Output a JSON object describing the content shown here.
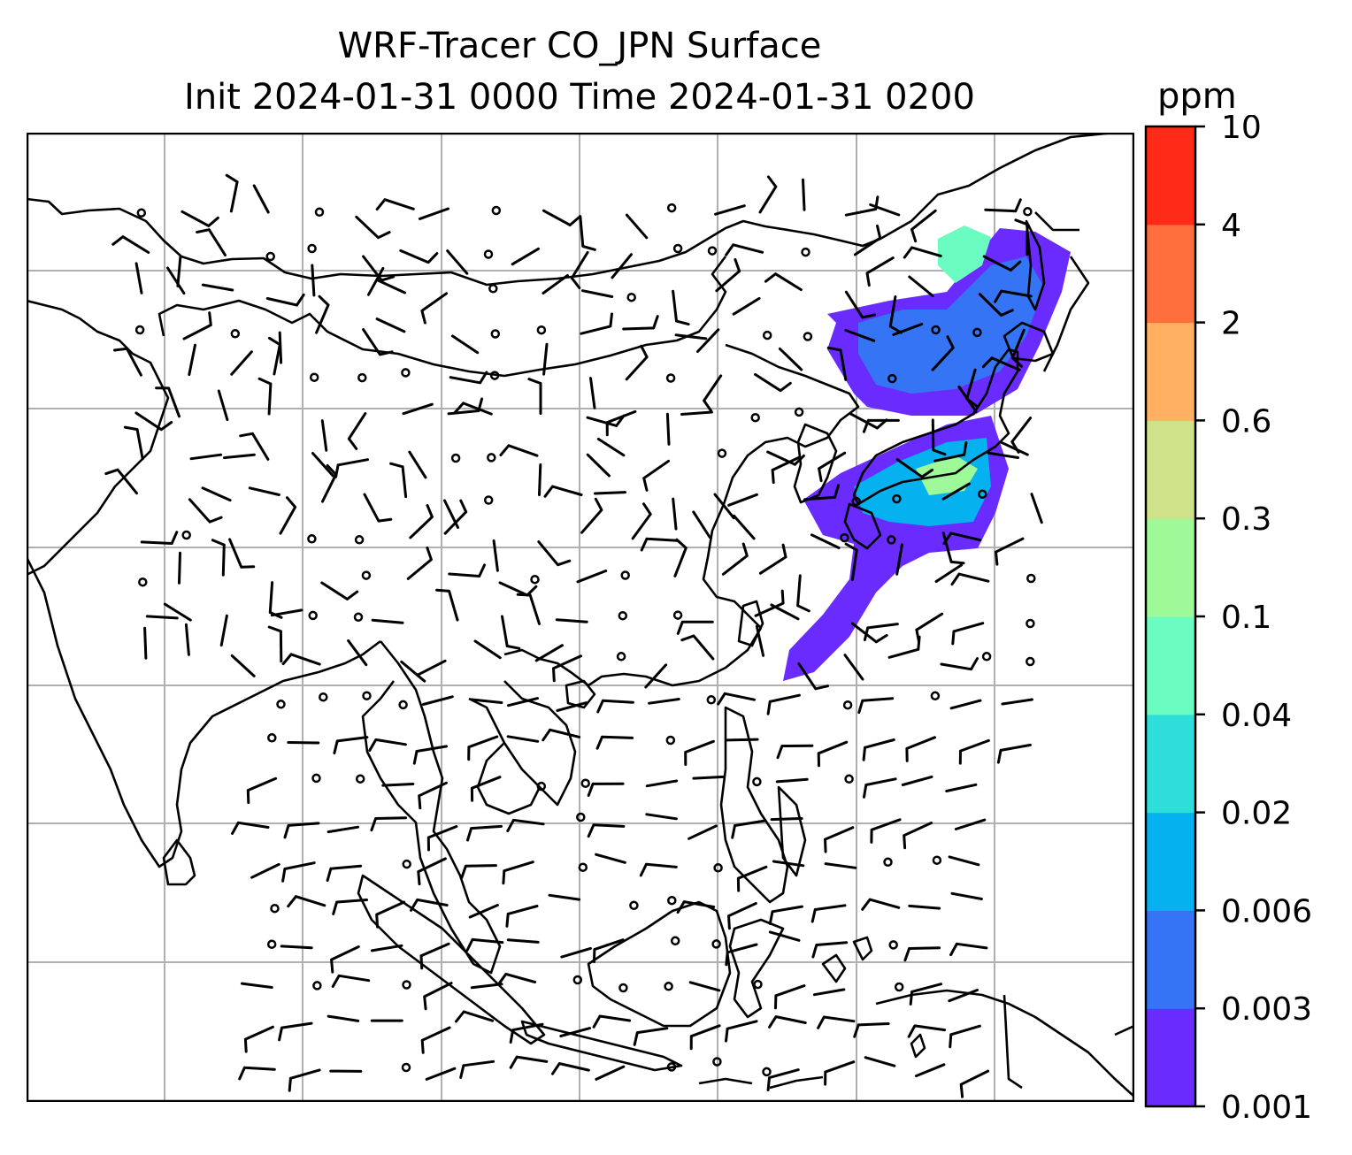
{
  "title_line1": "WRF-Tracer CO_JPN Surface",
  "title_line2": "Init 2024-01-31 0000 Time 2024-01-31 0200",
  "colorbar": {
    "unit": "ppm",
    "levels": [
      "0.001",
      "0.003",
      "0.006",
      "0.02",
      "0.04",
      "0.1",
      "0.3",
      "0.6",
      "2",
      "4",
      "10"
    ],
    "colors": [
      "#6a2bff",
      "#3574f4",
      "#05b1ef",
      "#2ddfd8",
      "#6afcc0",
      "#9efa99",
      "#cfe28a",
      "#ffb061",
      "#ff6e3d",
      "#ff2a17"
    ]
  },
  "map": {
    "grid_color": "#b0b0b0",
    "coastline_color": "#000000",
    "plume_colors": [
      "#6a2bff",
      "#3574f4",
      "#05b1ef",
      "#2ddfd8",
      "#6afcc0",
      "#9efa99"
    ]
  }
}
